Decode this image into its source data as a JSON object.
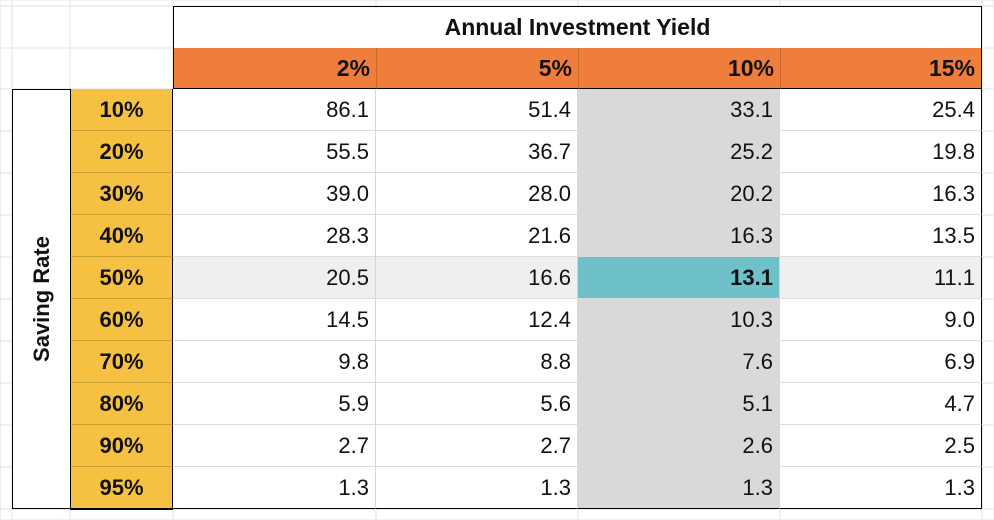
{
  "table": {
    "title": "Annual Investment Yield",
    "row_axis_label": "Saving Rate",
    "columns": [
      "2%",
      "5%",
      "10%",
      "15%"
    ],
    "rows": [
      {
        "rate": "10%",
        "values": [
          "86.1",
          "51.4",
          "33.1",
          "25.4"
        ]
      },
      {
        "rate": "20%",
        "values": [
          "55.5",
          "36.7",
          "25.2",
          "19.8"
        ]
      },
      {
        "rate": "30%",
        "values": [
          "39.0",
          "28.0",
          "20.2",
          "16.3"
        ]
      },
      {
        "rate": "40%",
        "values": [
          "28.3",
          "21.6",
          "16.3",
          "13.5"
        ]
      },
      {
        "rate": "50%",
        "values": [
          "20.5",
          "16.6",
          "13.1",
          "11.1"
        ]
      },
      {
        "rate": "60%",
        "values": [
          "14.5",
          "12.4",
          "10.3",
          "9.0"
        ]
      },
      {
        "rate": "70%",
        "values": [
          "9.8",
          "8.8",
          "7.6",
          "6.9"
        ]
      },
      {
        "rate": "80%",
        "values": [
          "5.9",
          "5.6",
          "5.1",
          "4.7"
        ]
      },
      {
        "rate": "90%",
        "values": [
          "2.7",
          "2.7",
          "2.6",
          "2.5"
        ]
      },
      {
        "rate": "95%",
        "values": [
          "1.3",
          "1.3",
          "1.3",
          "1.3"
        ]
      }
    ],
    "highlight": {
      "row": "50%",
      "column": "10%"
    }
  },
  "colors": {
    "header_orange": "#ef7d3b",
    "rate_gold": "#f6c143",
    "highlight_column_gray": "#d9d9d9",
    "highlight_row_gray": "#efefef",
    "highlight_cell_teal": "#6ec0c9",
    "gridline": "#e2e2e2",
    "border": "#000000"
  }
}
